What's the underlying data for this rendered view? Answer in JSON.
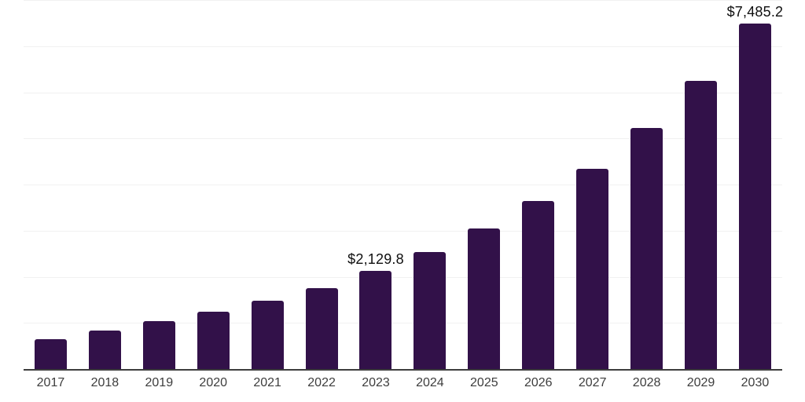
{
  "chart": {
    "background": "#ffffff",
    "bar_color": "#321149",
    "axis_color": "#3d3d3d",
    "gridline_color": "#f1f1f1",
    "value_label_color": "#0f0f0f",
    "tick_label_color": "#3d3d3d"
  },
  "chart_data": {
    "type": "bar",
    "title": "",
    "xlabel": "",
    "ylabel": "",
    "legend": "none",
    "grid": "horizontal",
    "ylim": [
      0,
      8000
    ],
    "gridline_step": 1000,
    "categories": [
      "2017",
      "2018",
      "2019",
      "2020",
      "2021",
      "2022",
      "2023",
      "2024",
      "2025",
      "2026",
      "2027",
      "2028",
      "2029",
      "2030"
    ],
    "values": [
      650,
      830,
      1035,
      1240,
      1480,
      1760,
      2129.8,
      2540,
      3045,
      3650,
      4340,
      5220,
      6240,
      7485.2
    ],
    "value_labels": [
      "",
      "",
      "",
      "",
      "",
      "",
      "$2,129.8",
      "",
      "",
      "",
      "",
      "",
      "",
      "$7,485.2"
    ]
  }
}
